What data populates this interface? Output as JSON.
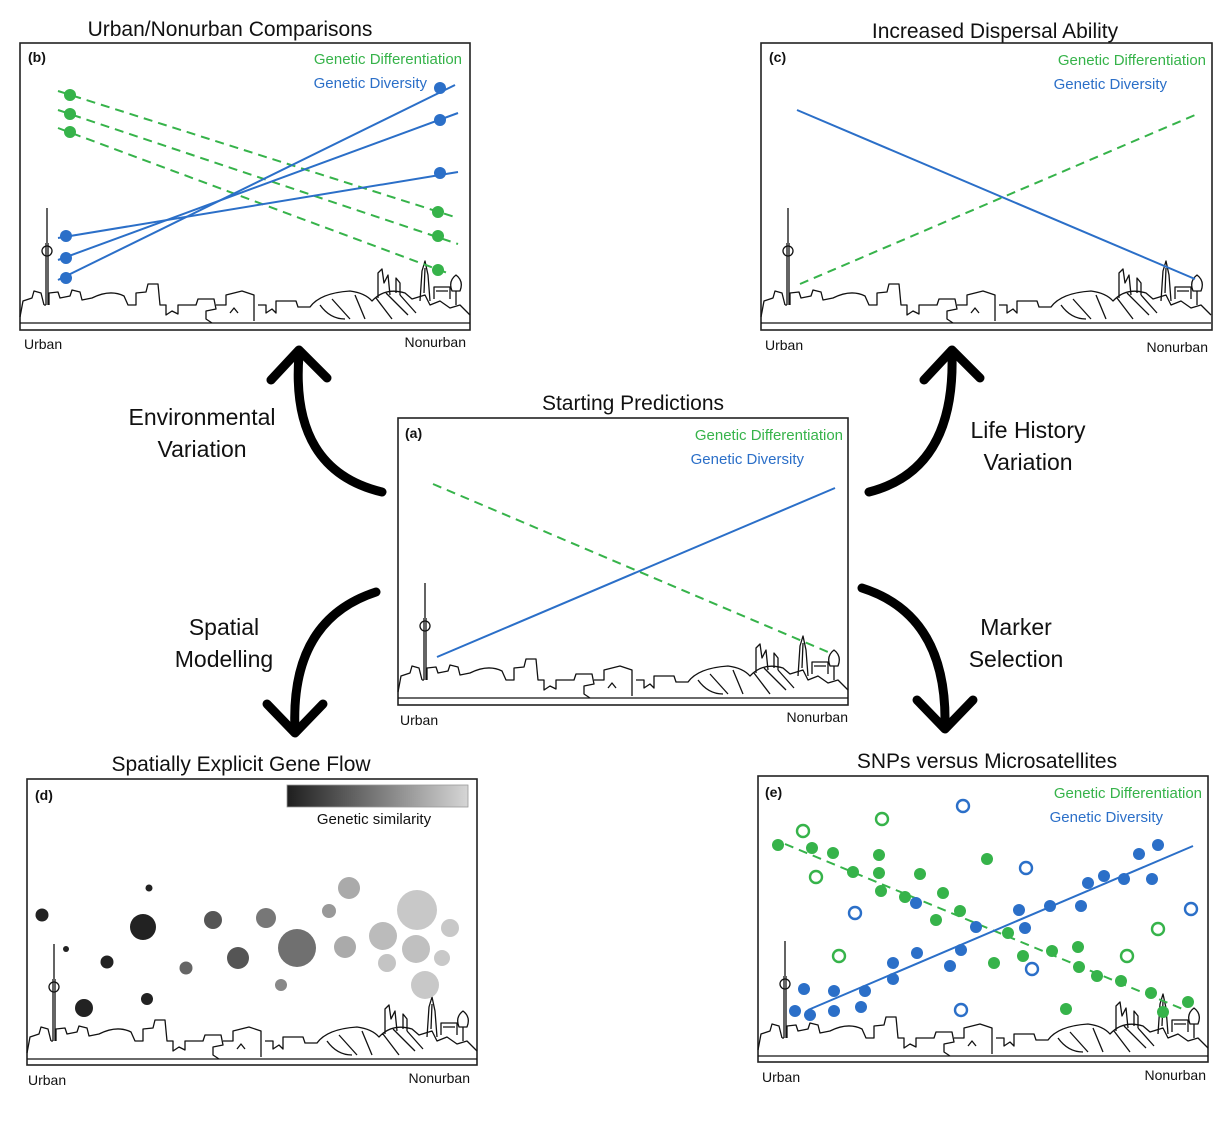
{
  "colors": {
    "differentiation": "#36b34a",
    "diversity": "#2b6fc8"
  },
  "legend": {
    "differentiation": "Genetic Differentiation",
    "diversity": "Genetic Diversity"
  },
  "axis": {
    "left": "Urban",
    "right": "Nonurban"
  },
  "panels": {
    "a": {
      "tag": "(a)",
      "title": "Starting Predictions"
    },
    "b": {
      "tag": "(b)",
      "title": "Urban/Nonurban Comparisons"
    },
    "c": {
      "tag": "(c)",
      "title": "Increased Dispersal Ability"
    },
    "d": {
      "tag": "(d)",
      "title": "Spatially Explicit Gene Flow",
      "scale_label": "Genetic similarity"
    },
    "e": {
      "tag": "(e)",
      "title": "SNPs versus Microsatellites"
    }
  },
  "arrows": {
    "top_left": {
      "line1": "Environmental",
      "line2": "Variation"
    },
    "top_right": {
      "line1": "Life History",
      "line2": "Variation"
    },
    "bottom_left": {
      "line1": "Spatial",
      "line2": "Modelling"
    },
    "bottom_right": {
      "line1": "Marker",
      "line2": "Selection"
    }
  }
}
